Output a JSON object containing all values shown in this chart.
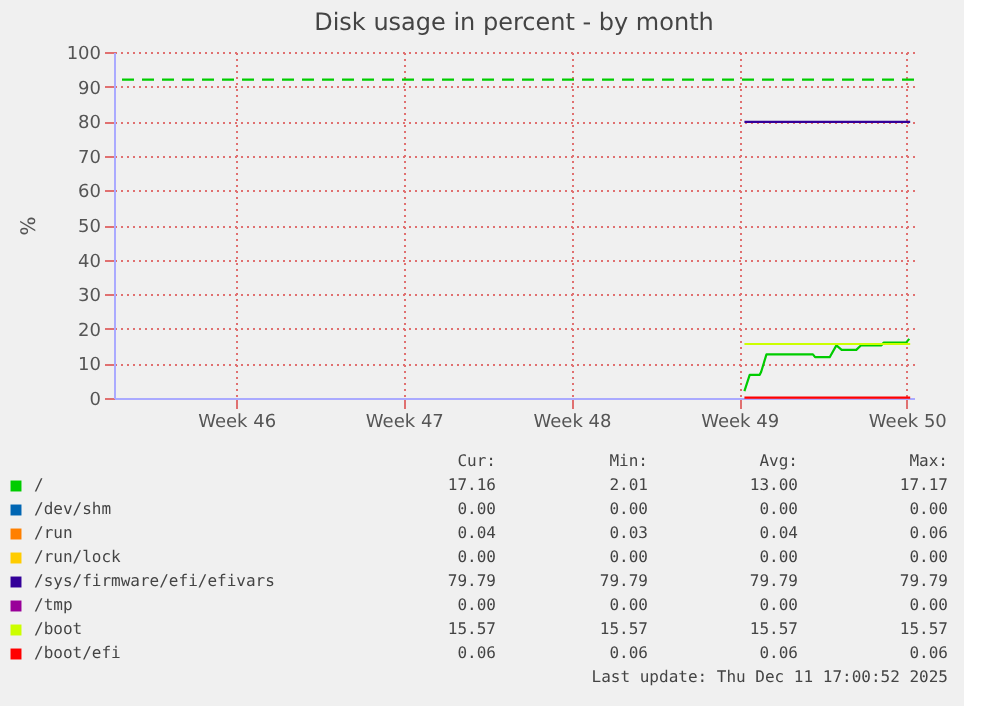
{
  "chart_data": {
    "type": "line",
    "title": "Disk usage in percent - by month",
    "ylabel": "%",
    "xlim": [
      "2025-11-07T21:36",
      "2025-12-11T07:12"
    ],
    "xticks": [
      {
        "value": "2025-11-13",
        "label": "Week 46"
      },
      {
        "value": "2025-11-20",
        "label": "Week 47"
      },
      {
        "value": "2025-11-27",
        "label": "Week 48"
      },
      {
        "value": "2025-12-04",
        "label": "Week 49"
      },
      {
        "value": "2025-12-11",
        "label": "Week 50"
      }
    ],
    "ylim": [
      0,
      100
    ],
    "yticks": [
      0,
      10,
      20,
      30,
      40,
      50,
      60,
      70,
      80,
      90,
      100
    ],
    "grid": true,
    "legend": "bottom",
    "line_style": "solid",
    "series": [
      {
        "name": "/",
        "color": "#00cc00",
        "x": [
          "2025-12-04T05:17",
          "2025-12-04T10:34",
          "2025-12-04T20:38",
          "2025-12-04T22:05",
          "2025-12-05T03:22",
          "2025-12-07T01:55",
          "2025-12-07T04:05",
          "2025-12-07T18:43",
          "2025-12-08T01:26",
          "2025-12-08T06:43",
          "2025-12-08T21:22",
          "2025-12-09T01:55",
          "2025-12-09T22:34",
          "2025-12-10T00:43",
          "2025-12-10T23:17",
          "2025-12-11T02:24"
        ],
        "values": [
          2.0,
          6.7,
          6.7,
          7.6,
          12.6,
          12.6,
          11.8,
          11.8,
          15.2,
          13.9,
          13.9,
          15.2,
          15.2,
          16.0,
          16.0,
          17.1
        ]
      },
      {
        "name": "/dev/shm",
        "color": "#0066b3"
      },
      {
        "name": "/run",
        "color": "#ff8000"
      },
      {
        "name": "/run/lock",
        "color": "#ffcc00"
      },
      {
        "name": "/sys/firmware/efi/efivars",
        "color": "#330099",
        "x": [
          "2025-12-04T05:17",
          "2025-12-11T03:22"
        ],
        "values": [
          79.8,
          79.8
        ]
      },
      {
        "name": "/tmp",
        "color": "#990099"
      },
      {
        "name": "/boot",
        "color": "#ccff00",
        "x": [
          "2025-12-04T05:17",
          "2025-12-11T03:22"
        ],
        "values": [
          15.6,
          15.6
        ]
      },
      {
        "name": "/boot/efi",
        "color": "#ff0000",
        "x": [
          "2025-12-04T05:17",
          "2025-12-11T03:22"
        ],
        "values": [
          0.1,
          0.1
        ]
      }
    ],
    "ref_lines": [
      {
        "axis": "y",
        "value": 92,
        "color": "#00cc00",
        "line_style": "dashed"
      }
    ],
    "annotations": [
      "Cur:",
      "Min:",
      "Avg:",
      "Max:",
      "17.16",
      "2.01",
      "13.00",
      "17.17",
      "0.00",
      "0.00",
      "0.00",
      "0.00",
      "0.04",
      "0.03",
      "0.04",
      "0.06",
      "0.00",
      "0.00",
      "0.00",
      "0.00",
      "79.79",
      "79.79",
      "79.79",
      "79.79",
      "0.00",
      "0.00",
      "0.00",
      "0.00",
      "15.57",
      "15.57",
      "15.57",
      "15.57",
      "0.06",
      "0.06",
      "0.06",
      "0.06",
      "Last update: Thu Dec 11 17:00:52 2025"
    ]
  }
}
